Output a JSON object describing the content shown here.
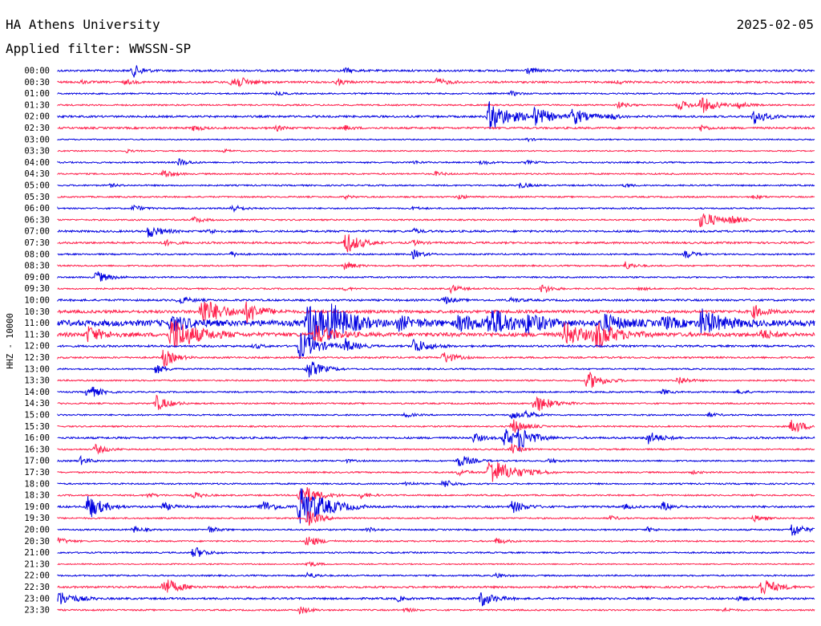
{
  "header": {
    "station": "HA Athens University",
    "date": "2025-02-05",
    "filter": "Applied filter: WWSSN-SP"
  },
  "chart_data": {
    "type": "line",
    "subtype": "helicorder",
    "channel_label": "HHZ - 10000",
    "colors": [
      "#0000e0",
      "#ff1f4b"
    ],
    "grid": false,
    "time_labels": [
      "00:00",
      "00:30",
      "01:00",
      "01:30",
      "02:00",
      "02:30",
      "03:00",
      "03:30",
      "04:00",
      "04:30",
      "05:00",
      "05:30",
      "06:00",
      "06:30",
      "07:00",
      "07:30",
      "08:00",
      "08:30",
      "09:00",
      "09:30",
      "10:00",
      "10:30",
      "11:00",
      "11:30",
      "12:00",
      "12:30",
      "13:00",
      "13:30",
      "14:00",
      "14:30",
      "15:00",
      "15:30",
      "16:00",
      "16:30",
      "17:00",
      "17:30",
      "18:00",
      "18:30",
      "19:00",
      "19:30",
      "20:00",
      "20:30",
      "21:00",
      "21:30",
      "22:00",
      "22:30",
      "23:00",
      "23:30"
    ],
    "rows": [
      {
        "label": "00:00",
        "noise": 2,
        "events": [
          [
            0.1,
            8,
            10
          ],
          [
            0.38,
            3,
            8
          ],
          [
            0.62,
            4,
            10
          ]
        ]
      },
      {
        "label": "00:30",
        "noise": 2,
        "events": [
          [
            0.03,
            2,
            8
          ],
          [
            0.09,
            3,
            8
          ],
          [
            0.23,
            10,
            16
          ],
          [
            0.37,
            4,
            8
          ],
          [
            0.5,
            5,
            12
          ],
          [
            0.74,
            2,
            8
          ]
        ]
      },
      {
        "label": "01:00",
        "noise": 1.5,
        "events": [
          [
            0.29,
            2,
            8
          ],
          [
            0.6,
            3,
            8
          ]
        ]
      },
      {
        "label": "01:30",
        "noise": 1.5,
        "events": [
          [
            0.74,
            4,
            10
          ],
          [
            0.82,
            6,
            14
          ],
          [
            0.85,
            10,
            16
          ],
          [
            0.9,
            5,
            10
          ]
        ]
      },
      {
        "label": "02:00",
        "noise": 2,
        "events": [
          [
            0.57,
            18,
            26
          ],
          [
            0.63,
            10,
            20
          ],
          [
            0.68,
            10,
            18
          ],
          [
            0.73,
            4,
            10
          ],
          [
            0.92,
            10,
            14
          ]
        ]
      },
      {
        "label": "02:30",
        "noise": 2,
        "events": [
          [
            0.18,
            4,
            8
          ],
          [
            0.29,
            3,
            8
          ],
          [
            0.38,
            3,
            8
          ],
          [
            0.85,
            4,
            8
          ]
        ]
      },
      {
        "label": "03:00",
        "noise": 1.2,
        "events": [
          [
            0.62,
            2,
            8
          ]
        ]
      },
      {
        "label": "03:30",
        "noise": 1.2,
        "events": [
          [
            0.09,
            2,
            8
          ],
          [
            0.22,
            2,
            8
          ]
        ]
      },
      {
        "label": "04:00",
        "noise": 1.5,
        "events": [
          [
            0.16,
            5,
            10
          ],
          [
            0.47,
            2,
            8
          ],
          [
            0.56,
            3,
            8
          ],
          [
            0.62,
            2,
            8
          ]
        ]
      },
      {
        "label": "04:30",
        "noise": 1.5,
        "events": [
          [
            0.14,
            6,
            10
          ],
          [
            0.5,
            3,
            8
          ]
        ]
      },
      {
        "label": "05:00",
        "noise": 1.5,
        "events": [
          [
            0.07,
            2,
            8
          ],
          [
            0.61,
            4,
            10
          ],
          [
            0.75,
            2,
            8
          ]
        ]
      },
      {
        "label": "05:30",
        "noise": 1.5,
        "events": [
          [
            0.38,
            2,
            8
          ],
          [
            0.53,
            3,
            8
          ],
          [
            0.92,
            3,
            8
          ]
        ]
      },
      {
        "label": "06:00",
        "noise": 1.5,
        "events": [
          [
            0.1,
            4,
            10
          ],
          [
            0.23,
            5,
            10
          ],
          [
            0.47,
            2,
            8
          ]
        ]
      },
      {
        "label": "06:30",
        "noise": 1.5,
        "events": [
          [
            0.18,
            4,
            10
          ],
          [
            0.85,
            12,
            18
          ],
          [
            0.89,
            5,
            10
          ]
        ]
      },
      {
        "label": "07:00",
        "noise": 2,
        "events": [
          [
            0.12,
            8,
            14
          ],
          [
            0.2,
            3,
            8
          ],
          [
            0.47,
            3,
            8
          ]
        ]
      },
      {
        "label": "07:30",
        "noise": 2,
        "events": [
          [
            0.14,
            4,
            10
          ],
          [
            0.38,
            14,
            16
          ],
          [
            0.47,
            3,
            8
          ]
        ]
      },
      {
        "label": "08:00",
        "noise": 1.5,
        "events": [
          [
            0.23,
            3,
            8
          ],
          [
            0.47,
            6,
            10
          ],
          [
            0.83,
            5,
            10
          ]
        ]
      },
      {
        "label": "08:30",
        "noise": 1.5,
        "events": [
          [
            0.38,
            6,
            10
          ],
          [
            0.75,
            5,
            10
          ]
        ]
      },
      {
        "label": "09:00",
        "noise": 1.5,
        "events": [
          [
            0.05,
            8,
            14
          ]
        ]
      },
      {
        "label": "09:30",
        "noise": 1.5,
        "events": [
          [
            0.38,
            2,
            8
          ],
          [
            0.52,
            5,
            10
          ],
          [
            0.64,
            6,
            10
          ],
          [
            0.77,
            2,
            8
          ]
        ]
      },
      {
        "label": "10:00",
        "noise": 2,
        "events": [
          [
            0.16,
            5,
            12
          ],
          [
            0.51,
            5,
            10
          ],
          [
            0.6,
            3,
            10
          ]
        ]
      },
      {
        "label": "10:30",
        "noise": 3,
        "events": [
          [
            0.19,
            18,
            24
          ],
          [
            0.25,
            12,
            18
          ],
          [
            0.92,
            8,
            12
          ]
        ]
      },
      {
        "label": "11:00",
        "noise": 6,
        "events": [
          [
            0.15,
            10,
            20
          ],
          [
            0.33,
            26,
            26
          ],
          [
            0.36,
            16,
            24
          ],
          [
            0.45,
            8,
            20
          ],
          [
            0.53,
            10,
            22
          ],
          [
            0.57,
            18,
            26
          ],
          [
            0.62,
            10,
            20
          ],
          [
            0.72,
            12,
            20
          ],
          [
            0.8,
            8,
            16
          ],
          [
            0.85,
            16,
            24
          ]
        ]
      },
      {
        "label": "11:30",
        "noise": 4,
        "events": [
          [
            0.04,
            10,
            16
          ],
          [
            0.15,
            22,
            28
          ],
          [
            0.34,
            12,
            20
          ],
          [
            0.67,
            16,
            20
          ],
          [
            0.71,
            16,
            24
          ],
          [
            0.93,
            6,
            12
          ]
        ]
      },
      {
        "label": "12:00",
        "noise": 2,
        "events": [
          [
            0.26,
            3,
            8
          ],
          [
            0.32,
            18,
            20
          ],
          [
            0.38,
            8,
            14
          ],
          [
            0.47,
            10,
            16
          ]
        ]
      },
      {
        "label": "12:30",
        "noise": 1.8,
        "events": [
          [
            0.14,
            12,
            12
          ],
          [
            0.51,
            8,
            12
          ]
        ]
      },
      {
        "label": "13:00",
        "noise": 1.5,
        "events": [
          [
            0.13,
            6,
            10
          ],
          [
            0.33,
            12,
            16
          ]
        ]
      },
      {
        "label": "13:30",
        "noise": 1.5,
        "events": [
          [
            0.7,
            12,
            16
          ],
          [
            0.82,
            6,
            10
          ]
        ]
      },
      {
        "label": "14:00",
        "noise": 1.5,
        "events": [
          [
            0.04,
            10,
            12
          ],
          [
            0.8,
            3,
            8
          ],
          [
            0.9,
            3,
            8
          ]
        ]
      },
      {
        "label": "14:30",
        "noise": 1.5,
        "events": [
          [
            0.13,
            10,
            14
          ],
          [
            0.63,
            12,
            18
          ]
        ]
      },
      {
        "label": "15:00",
        "noise": 1.5,
        "events": [
          [
            0.46,
            3,
            8
          ],
          [
            0.6,
            6,
            10
          ],
          [
            0.62,
            5,
            10
          ],
          [
            0.86,
            3,
            8
          ]
        ]
      },
      {
        "label": "15:30",
        "noise": 1.5,
        "events": [
          [
            0.6,
            10,
            14
          ],
          [
            0.97,
            10,
            14
          ]
        ]
      },
      {
        "label": "16:00",
        "noise": 2,
        "events": [
          [
            0.55,
            6,
            10
          ],
          [
            0.59,
            12,
            14
          ],
          [
            0.61,
            14,
            16
          ],
          [
            0.78,
            8,
            14
          ]
        ]
      },
      {
        "label": "16:30",
        "noise": 1.5,
        "events": [
          [
            0.05,
            6,
            12
          ],
          [
            0.6,
            6,
            10
          ]
        ]
      },
      {
        "label": "17:00",
        "noise": 1.5,
        "events": [
          [
            0.03,
            5,
            10
          ],
          [
            0.38,
            2,
            8
          ],
          [
            0.53,
            8,
            14
          ],
          [
            0.65,
            3,
            8
          ]
        ]
      },
      {
        "label": "17:30",
        "noise": 1.5,
        "events": [
          [
            0.53,
            4,
            10
          ],
          [
            0.57,
            18,
            28
          ],
          [
            0.84,
            2,
            8
          ]
        ]
      },
      {
        "label": "18:00",
        "noise": 1.5,
        "events": [
          [
            0.46,
            3,
            8
          ],
          [
            0.51,
            6,
            10
          ]
        ]
      },
      {
        "label": "18:30",
        "noise": 1.5,
        "events": [
          [
            0.12,
            3,
            8
          ],
          [
            0.18,
            4,
            10
          ],
          [
            0.32,
            16,
            18
          ],
          [
            0.4,
            4,
            10
          ]
        ]
      },
      {
        "label": "19:00",
        "noise": 2,
        "events": [
          [
            0.04,
            16,
            16
          ],
          [
            0.14,
            5,
            10
          ],
          [
            0.27,
            8,
            14
          ],
          [
            0.32,
            28,
            28
          ],
          [
            0.6,
            8,
            14
          ],
          [
            0.75,
            3,
            8
          ],
          [
            0.8,
            6,
            10
          ]
        ]
      },
      {
        "label": "19:30",
        "noise": 1.5,
        "events": [
          [
            0.33,
            10,
            14
          ],
          [
            0.73,
            3,
            8
          ],
          [
            0.92,
            4,
            10
          ]
        ]
      },
      {
        "label": "20:00",
        "noise": 1.5,
        "events": [
          [
            0.1,
            4,
            10
          ],
          [
            0.2,
            4,
            10
          ],
          [
            0.41,
            3,
            8
          ],
          [
            0.78,
            3,
            8
          ],
          [
            0.97,
            10,
            12
          ]
        ]
      },
      {
        "label": "20:30",
        "noise": 1.5,
        "events": [
          [
            0.0,
            5,
            10
          ],
          [
            0.33,
            8,
            12
          ],
          [
            0.58,
            4,
            10
          ]
        ]
      },
      {
        "label": "21:00",
        "noise": 1.5,
        "events": [
          [
            0.18,
            8,
            12
          ]
        ]
      },
      {
        "label": "21:30",
        "noise": 1.2,
        "events": [
          [
            0.33,
            4,
            10
          ]
        ]
      },
      {
        "label": "22:00",
        "noise": 1.5,
        "events": [
          [
            0.33,
            4,
            10
          ],
          [
            0.58,
            3,
            8
          ]
        ]
      },
      {
        "label": "22:30",
        "noise": 2,
        "events": [
          [
            0.14,
            12,
            16
          ],
          [
            0.93,
            12,
            16
          ]
        ]
      },
      {
        "label": "23:00",
        "noise": 2,
        "events": [
          [
            0.0,
            10,
            18
          ],
          [
            0.45,
            3,
            8
          ],
          [
            0.56,
            10,
            14
          ],
          [
            0.9,
            3,
            8
          ]
        ]
      },
      {
        "label": "23:30",
        "noise": 1.5,
        "events": [
          [
            0.32,
            5,
            10
          ],
          [
            0.46,
            3,
            8
          ],
          [
            0.88,
            3,
            8
          ]
        ]
      }
    ]
  }
}
